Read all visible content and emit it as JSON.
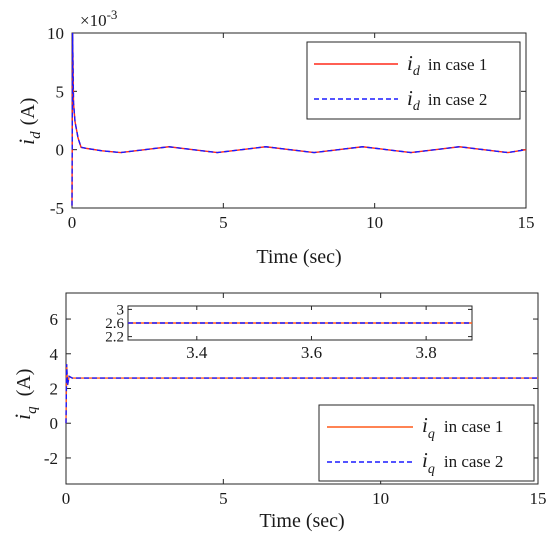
{
  "chart_data": [
    {
      "type": "line",
      "ylabel": "i_d (A)",
      "ylabel_main": "i",
      "ylabel_sub": "d",
      "ylabel_unit": "(A)",
      "xlabel": "Time (sec)",
      "xlim": [
        0,
        15
      ],
      "ylim": [
        -5,
        10
      ],
      "xticks": [
        0,
        5,
        10,
        15
      ],
      "yticks": [
        -5,
        0,
        5,
        10
      ],
      "exponent_base": "×10",
      "exponent_power": "-3",
      "grid": false,
      "legend_position": "top-right",
      "series": [
        {
          "name": "i_d in case 1",
          "sym": "i",
          "sub": "d",
          "suffix": "in case 1",
          "color": "#ff2a1a",
          "style": "solid",
          "x": [
            0,
            0.02,
            0.05,
            0.1,
            0.2,
            0.3,
            0.5,
            1.0,
            1.6,
            2.4,
            3.2,
            4.0,
            4.8,
            5.6,
            6.4,
            7.2,
            8.0,
            8.8,
            9.6,
            10.4,
            11.2,
            12.0,
            12.8,
            13.6,
            14.4,
            15.0
          ],
          "y": [
            -4.8,
            10,
            4.0,
            2.4,
            1.0,
            0.2,
            0.1,
            -0.1,
            -0.25,
            0.0,
            0.25,
            0.0,
            -0.25,
            0.0,
            0.25,
            0.0,
            -0.25,
            0.0,
            0.25,
            0.0,
            -0.25,
            0.0,
            0.25,
            0.0,
            -0.25,
            0.0
          ]
        },
        {
          "name": "i_d in case 2",
          "sym": "i",
          "sub": "d",
          "suffix": "in case 2",
          "color": "#1a1aff",
          "style": "dashed",
          "x": [
            0,
            0.02,
            0.05,
            0.1,
            0.2,
            0.3,
            0.5,
            1.0,
            1.6,
            2.4,
            3.2,
            4.0,
            4.8,
            5.6,
            6.4,
            7.2,
            8.0,
            8.8,
            9.6,
            10.4,
            11.2,
            12.0,
            12.8,
            13.6,
            14.4,
            15.0
          ],
          "y": [
            -4.8,
            10,
            4.0,
            2.4,
            1.0,
            0.2,
            0.1,
            -0.1,
            -0.25,
            0.0,
            0.25,
            0.0,
            -0.25,
            0.0,
            0.25,
            0.0,
            -0.25,
            0.0,
            0.25,
            0.0,
            -0.25,
            0.0,
            0.25,
            0.0,
            -0.25,
            0.0
          ]
        }
      ]
    },
    {
      "type": "line",
      "ylabel": "i_q (A)",
      "ylabel_main": "i",
      "ylabel_sub": "q",
      "ylabel_unit": "(A)",
      "xlabel": "Time (sec)",
      "xlim": [
        0,
        15
      ],
      "ylim": [
        -3.5,
        7.5
      ],
      "xticks": [
        0,
        5,
        10,
        15
      ],
      "yticks": [
        -2,
        0,
        2,
        4,
        6
      ],
      "grid": false,
      "legend_position": "bottom-right",
      "series": [
        {
          "name": "i_q in case 1",
          "sym": "i",
          "sub": "q",
          "suffix": "in case 1",
          "color": "#ff5a1a",
          "style": "solid",
          "x": [
            0,
            0.02,
            0.05,
            0.1,
            0.2,
            0.5,
            15
          ],
          "y": [
            0,
            3.4,
            2.2,
            2.7,
            2.6,
            2.6,
            2.6
          ]
        },
        {
          "name": "i_q in case 2",
          "sym": "i",
          "sub": "q",
          "suffix": "in case 2",
          "color": "#1a1aff",
          "style": "dashed",
          "x": [
            0,
            0.02,
            0.05,
            0.1,
            0.2,
            0.5,
            15
          ],
          "y": [
            0,
            3.4,
            2.2,
            2.7,
            2.6,
            2.6,
            2.6
          ]
        }
      ],
      "inset": {
        "xlim": [
          3.28,
          3.88
        ],
        "ylim": [
          2.1,
          3.1
        ],
        "xticks": [
          3.4,
          3.6,
          3.8
        ],
        "ytick_labels": [
          "3",
          "2.6",
          "2.2"
        ],
        "ytick_values": [
          3.0,
          2.6,
          2.2
        ],
        "value": 2.6
      }
    }
  ]
}
